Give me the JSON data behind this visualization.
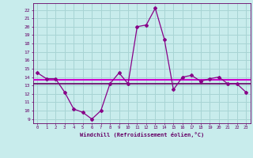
{
  "x": [
    0,
    1,
    2,
    3,
    4,
    5,
    6,
    7,
    8,
    9,
    10,
    11,
    12,
    13,
    14,
    15,
    16,
    17,
    18,
    19,
    20,
    21,
    22,
    23
  ],
  "y_line": [
    14.5,
    13.8,
    13.8,
    12.2,
    10.2,
    9.8,
    9.0,
    10.0,
    13.2,
    14.5,
    13.2,
    20.0,
    20.2,
    22.2,
    18.5,
    12.5,
    14.0,
    14.2,
    13.5,
    13.8,
    14.0,
    13.2,
    13.2,
    12.2
  ],
  "y_hline1": 13.7,
  "y_hline2": 13.25,
  "line_color": "#880088",
  "hline_color1": "#cc00cc",
  "hline_color2": "#660066",
  "bg_color": "#c8ecec",
  "grid_color": "#a8d4d4",
  "text_color": "#660066",
  "xlabel": "Windchill (Refroidissement éolien,°C)",
  "ylabel_ticks": [
    9,
    10,
    11,
    12,
    13,
    14,
    15,
    16,
    17,
    18,
    19,
    20,
    21,
    22
  ],
  "xlim": [
    -0.5,
    23.5
  ],
  "ylim": [
    8.5,
    22.8
  ]
}
